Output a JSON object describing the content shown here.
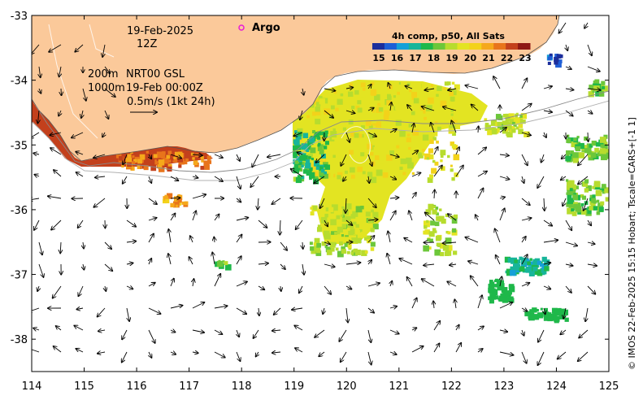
{
  "map": {
    "lon_range": [
      114,
      125
    ],
    "lat_range": [
      -38.5,
      -33
    ],
    "x_ticks": [
      "114",
      "115",
      "116",
      "117",
      "118",
      "119",
      "120",
      "121",
      "122",
      "123",
      "124",
      "125"
    ],
    "y_ticks": [
      "-33",
      "-34",
      "-35",
      "-36",
      "-37",
      "-38"
    ],
    "land_color": "#fbc99a",
    "ocean_color": "#ffffff"
  },
  "annotations": {
    "date": "19-Feb-2025",
    "hour": "12Z",
    "depth1": "200m",
    "depth2": "1000m",
    "product": "NRT00 GSL",
    "product_time": "19-Feb 00:00Z",
    "vector_scale": "0.5m/s (1kt 24h)"
  },
  "legend": {
    "argo_label": "Argo",
    "argo_color": "#e81ad8"
  },
  "colorbar": {
    "title": "4h comp, p50, All Sats",
    "ticks": [
      "15",
      "16",
      "17",
      "18",
      "19",
      "20",
      "21",
      "22",
      "23"
    ],
    "colors": [
      "#1c2e9c",
      "#1f5fd6",
      "#16a0d8",
      "#17b59a",
      "#1fb84a",
      "#6cc73a",
      "#b7dc2e",
      "#e3e422",
      "#f3d21a",
      "#f5a81b",
      "#e8741b",
      "#c3401c",
      "#8f1814"
    ]
  },
  "credit": "© IMOS 22-Feb-2025 15:15 Hobart; Tscale=CARS+[-1 1]"
}
